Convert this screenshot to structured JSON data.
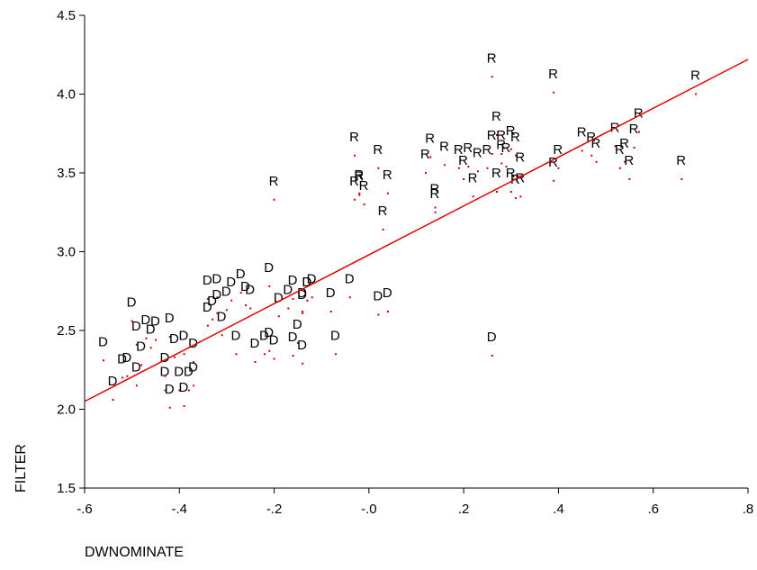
{
  "chart_data": {
    "type": "scatter",
    "title": "",
    "xlabel": "DWNOMINATE",
    "ylabel": "FILTER",
    "xlim": [
      -0.6,
      0.8
    ],
    "ylim": [
      1.5,
      4.5
    ],
    "grid": false,
    "x_ticks": [
      -0.6,
      -0.4,
      -0.2,
      0.0,
      0.2,
      0.4,
      0.6,
      0.8
    ],
    "x_tick_labels": [
      "-.6",
      "-.4",
      "-.2",
      "-.0",
      ".2",
      ".4",
      ".6",
      ".8"
    ],
    "y_ticks": [
      1.5,
      2.0,
      2.5,
      3.0,
      3.5,
      4.0,
      4.5
    ],
    "y_tick_labels": [
      "1.5",
      "2.0",
      "2.5",
      "3.0",
      "3.5",
      "4.0",
      "4.5"
    ],
    "colors": {
      "points": "#cc0000",
      "fit_line": "#e00000",
      "axis": "#000000"
    },
    "series": [
      {
        "name": "D",
        "points": [
          [
            -0.56,
            2.31
          ],
          [
            -0.54,
            2.06
          ],
          [
            -0.52,
            2.2
          ],
          [
            -0.51,
            2.21
          ],
          [
            -0.5,
            2.56
          ],
          [
            -0.49,
            2.41
          ],
          [
            -0.49,
            2.15
          ],
          [
            -0.48,
            2.28
          ],
          [
            -0.47,
            2.45
          ],
          [
            -0.46,
            2.39
          ],
          [
            -0.45,
            2.44
          ],
          [
            -0.43,
            2.12
          ],
          [
            -0.43,
            2.21
          ],
          [
            -0.42,
            2.01
          ],
          [
            -0.42,
            2.46
          ],
          [
            -0.41,
            2.33
          ],
          [
            -0.4,
            2.12
          ],
          [
            -0.39,
            2.02
          ],
          [
            -0.39,
            2.35
          ],
          [
            -0.38,
            2.12
          ],
          [
            -0.37,
            2.3
          ],
          [
            -0.37,
            2.15
          ],
          [
            -0.34,
            2.7
          ],
          [
            -0.34,
            2.53
          ],
          [
            -0.33,
            2.57
          ],
          [
            -0.32,
            2.71
          ],
          [
            -0.32,
            2.61
          ],
          [
            -0.31,
            2.47
          ],
          [
            -0.3,
            2.63
          ],
          [
            -0.29,
            2.69
          ],
          [
            -0.28,
            2.35
          ],
          [
            -0.27,
            2.74
          ],
          [
            -0.26,
            2.66
          ],
          [
            -0.25,
            2.64
          ],
          [
            -0.24,
            2.3
          ],
          [
            -0.22,
            2.35
          ],
          [
            -0.21,
            2.37
          ],
          [
            -0.21,
            2.78
          ],
          [
            -0.2,
            2.32
          ],
          [
            -0.19,
            2.59
          ],
          [
            -0.17,
            2.64
          ],
          [
            -0.16,
            2.34
          ],
          [
            -0.16,
            2.7
          ],
          [
            -0.15,
            2.42
          ],
          [
            -0.14,
            2.29
          ],
          [
            -0.14,
            2.61
          ],
          [
            -0.14,
            2.62
          ],
          [
            -0.13,
            2.69
          ],
          [
            -0.13,
            2.69
          ],
          [
            -0.12,
            2.71
          ],
          [
            -0.08,
            2.62
          ],
          [
            -0.07,
            2.35
          ],
          [
            -0.04,
            2.71
          ],
          [
            0.02,
            2.6
          ],
          [
            0.04,
            2.62
          ],
          [
            0.26,
            2.34
          ]
        ]
      },
      {
        "name": "R",
        "points": [
          [
            -0.2,
            3.33
          ],
          [
            -0.03,
            3.33
          ],
          [
            -0.03,
            3.61
          ],
          [
            -0.02,
            3.36
          ],
          [
            -0.02,
            3.37
          ],
          [
            -0.01,
            3.3
          ],
          [
            0.02,
            3.53
          ],
          [
            0.03,
            3.14
          ],
          [
            0.04,
            3.37
          ],
          [
            0.12,
            3.5
          ],
          [
            0.13,
            3.6
          ],
          [
            0.14,
            3.25
          ],
          [
            0.14,
            3.28
          ],
          [
            0.16,
            3.55
          ],
          [
            0.19,
            3.53
          ],
          [
            0.2,
            3.46
          ],
          [
            0.21,
            3.54
          ],
          [
            0.22,
            3.35
          ],
          [
            0.23,
            3.51
          ],
          [
            0.25,
            3.53
          ],
          [
            0.26,
            4.11
          ],
          [
            0.26,
            3.62
          ],
          [
            0.27,
            3.74
          ],
          [
            0.27,
            3.38
          ],
          [
            0.28,
            3.62
          ],
          [
            0.28,
            3.56
          ],
          [
            0.29,
            3.54
          ],
          [
            0.3,
            3.38
          ],
          [
            0.3,
            3.65
          ],
          [
            0.31,
            3.34
          ],
          [
            0.31,
            3.61
          ],
          [
            0.32,
            3.35
          ],
          [
            0.32,
            3.48
          ],
          [
            0.39,
            4.01
          ],
          [
            0.39,
            3.45
          ],
          [
            0.4,
            3.53
          ],
          [
            0.45,
            3.64
          ],
          [
            0.47,
            3.61
          ],
          [
            0.48,
            3.57
          ],
          [
            0.52,
            3.67
          ],
          [
            0.53,
            3.53
          ],
          [
            0.54,
            3.57
          ],
          [
            0.55,
            3.46
          ],
          [
            0.56,
            3.66
          ],
          [
            0.57,
            3.76
          ],
          [
            0.66,
            3.46
          ],
          [
            0.69,
            4.0
          ]
        ]
      }
    ],
    "fit_line": {
      "x": [
        -0.6,
        0.8
      ],
      "y": [
        2.05,
        4.22
      ]
    }
  }
}
